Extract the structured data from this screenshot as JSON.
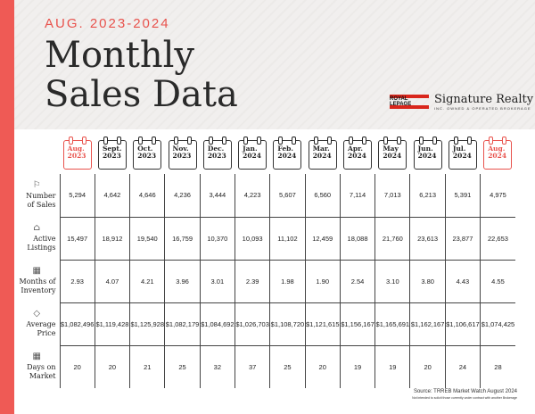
{
  "header": {
    "subtitle": "AUG. 2023-2024",
    "title_line1": "Monthly",
    "title_line2": "Sales Data"
  },
  "logo": {
    "mark": "ROYAL LEPAGE",
    "name": "Signature Realty",
    "tagline": "INC. OWNED & OPERATED BROKERAGE"
  },
  "colors": {
    "accent": "#ef5a55",
    "text": "#2a2a2a"
  },
  "months": [
    {
      "m": "Aug.",
      "y": "2023",
      "highlight": true
    },
    {
      "m": "Sept.",
      "y": "2023"
    },
    {
      "m": "Oct.",
      "y": "2023"
    },
    {
      "m": "Nov.",
      "y": "2023"
    },
    {
      "m": "Dec.",
      "y": "2023"
    },
    {
      "m": "Jan.",
      "y": "2024"
    },
    {
      "m": "Feb.",
      "y": "2024"
    },
    {
      "m": "Mar.",
      "y": "2024"
    },
    {
      "m": "Apr.",
      "y": "2024"
    },
    {
      "m": "May",
      "y": "2024"
    },
    {
      "m": "Jun.",
      "y": "2024"
    },
    {
      "m": "Jul.",
      "y": "2024"
    },
    {
      "m": "Aug.",
      "y": "2024",
      "highlight": true
    }
  ],
  "rows": [
    {
      "icon": "sign-icon",
      "l1": "Number",
      "l2": "of Sales",
      "values": [
        "5,294",
        "4,642",
        "4,646",
        "4,236",
        "3,444",
        "4,223",
        "5,607",
        "6,560",
        "7,114",
        "7,013",
        "6,213",
        "5,391",
        "4,975"
      ]
    },
    {
      "icon": "house-icon",
      "l1": "Active",
      "l2": "Listings",
      "values": [
        "15,497",
        "18,912",
        "19,540",
        "16,759",
        "10,370",
        "10,093",
        "11,102",
        "12,459",
        "18,088",
        "21,760",
        "23,613",
        "23,877",
        "22,653"
      ]
    },
    {
      "icon": "calculator-icon",
      "l1": "Months of",
      "l2": "Inventory",
      "values": [
        "2.93",
        "4.07",
        "4.21",
        "3.96",
        "3.01",
        "2.39",
        "1.98",
        "1.90",
        "2.54",
        "3.10",
        "3.80",
        "4.43",
        "4.55"
      ]
    },
    {
      "icon": "price-tag-icon",
      "l1": "Average",
      "l2": "Price",
      "values": [
        "$1,082,496",
        "$1,119,428",
        "$1,125,928",
        "$1,082,179",
        "$1,084,692",
        "$1,026,703",
        "$1,108,720",
        "$1,121,615",
        "$1,156,167",
        "$1,165,691",
        "$1,162,167",
        "$1,106,617",
        "$1,074,425"
      ]
    },
    {
      "icon": "calendar-icon",
      "l1": "Days on",
      "l2": "Market",
      "values": [
        "20",
        "20",
        "21",
        "25",
        "32",
        "37",
        "25",
        "20",
        "19",
        "19",
        "20",
        "24",
        "28"
      ]
    }
  ],
  "footer": {
    "source": "Source: TRREB Market Watch August 2024",
    "disclaimer": "Not intended to solicit those currently under contract with another Brokerage"
  }
}
